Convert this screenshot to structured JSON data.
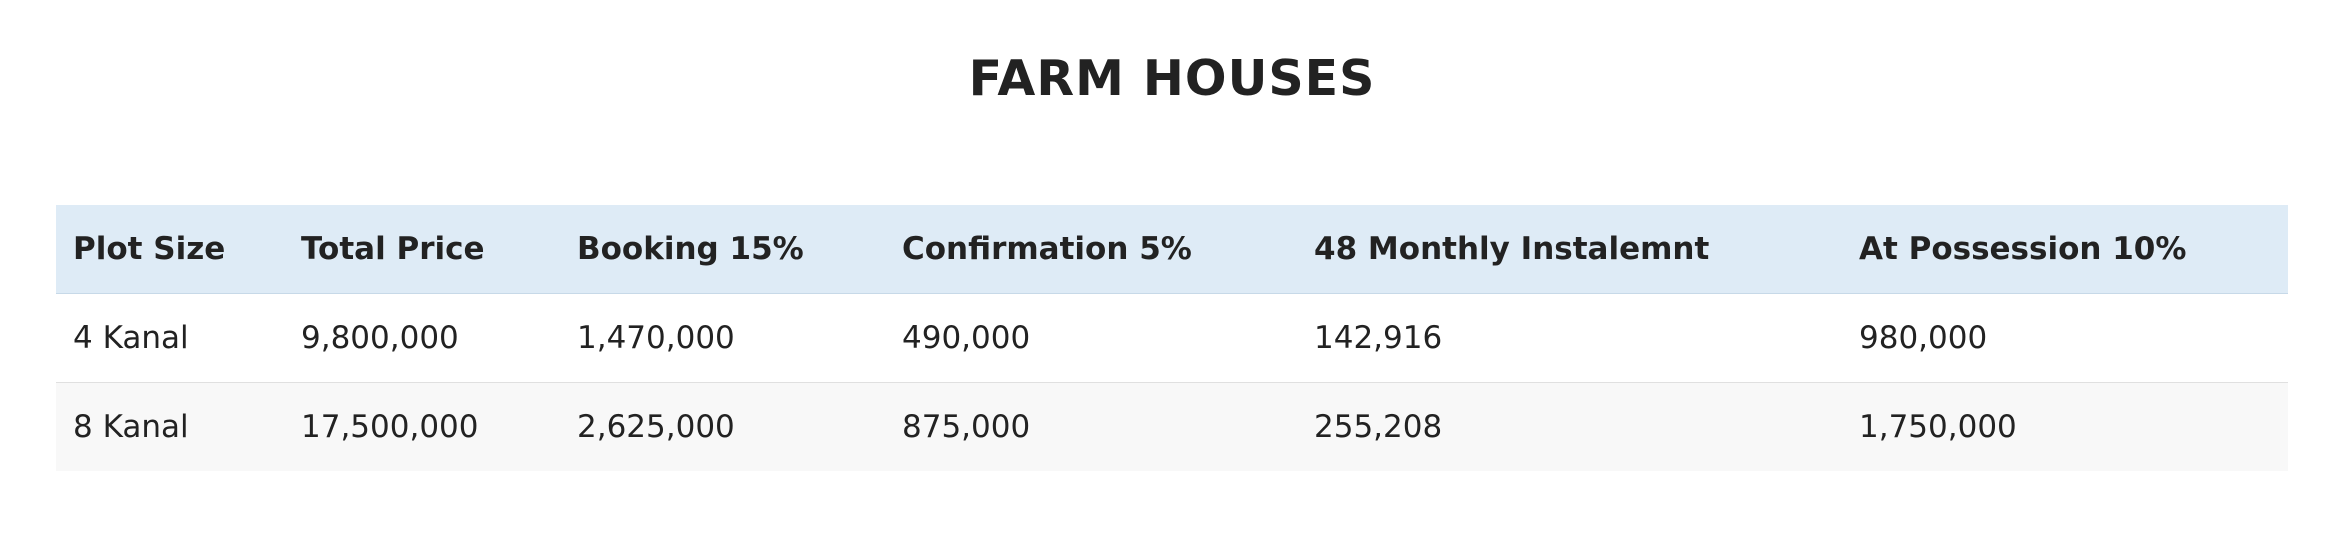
{
  "page": {
    "title": "FARM HOUSES"
  },
  "table": {
    "headers": [
      "Plot Size",
      "Total Price",
      "Booking 15%",
      "Confirmation 5%",
      "48 Monthly Instalemnt",
      "At Possession 10%"
    ],
    "rows": [
      [
        "4 Kanal",
        "9,800,000",
        "1,470,000",
        "490,000",
        "142,916",
        "980,000"
      ],
      [
        "8 Kanal",
        "17,500,000",
        "2,625,000",
        "875,000",
        "255,208",
        "1,750,000"
      ]
    ]
  },
  "colors": {
    "header_bg": "#deebf6",
    "stripe_bg": "#f8f8f8",
    "text": "#222222"
  }
}
